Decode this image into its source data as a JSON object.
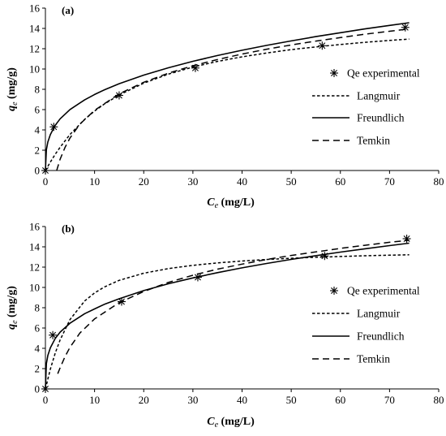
{
  "chart_data": [
    {
      "type": "scatter",
      "panel_label": "(a)",
      "xlabel_main": "C",
      "xlabel_sub": "e",
      "xlabel_unit": " (mg/L)",
      "ylabel_main": "q",
      "ylabel_sub": "e",
      "ylabel_unit": " (mg/g)",
      "xlim": [
        0,
        80
      ],
      "ylim": [
        0,
        16
      ],
      "xticks": [
        0,
        10,
        20,
        30,
        40,
        50,
        60,
        70,
        80
      ],
      "yticks": [
        0,
        2,
        4,
        6,
        8,
        10,
        12,
        14,
        16
      ],
      "grid": false,
      "legend_position": "right",
      "series": [
        {
          "name": "Qe experimental",
          "kind": "markers",
          "x": [
            0,
            1.7,
            15.0,
            30.5,
            56.3,
            73.2
          ],
          "y": [
            0,
            4.3,
            7.4,
            10.1,
            12.3,
            14.1
          ]
        },
        {
          "name": "Langmuir",
          "kind": "dotted",
          "x": [
            0,
            1,
            2,
            3,
            5,
            8,
            10,
            12,
            15,
            20,
            25,
            30,
            35,
            40,
            45,
            50,
            55,
            60,
            65,
            70,
            74
          ],
          "y": [
            0,
            0.83,
            1.6,
            2.3,
            3.55,
            5.05,
            5.86,
            6.56,
            7.44,
            8.61,
            9.5,
            10.19,
            10.75,
            11.2,
            11.58,
            11.91,
            12.18,
            12.42,
            12.63,
            12.82,
            12.95
          ]
        },
        {
          "name": "Freundlich",
          "kind": "solid",
          "x": [
            0,
            0.2,
            0.5,
            1,
            2,
            3,
            5,
            8,
            10,
            12,
            15,
            20,
            25,
            30,
            35,
            40,
            45,
            50,
            55,
            60,
            65,
            70,
            74
          ],
          "y": [
            0,
            2.05,
            2.81,
            3.54,
            4.46,
            5.1,
            6.01,
            6.97,
            7.49,
            7.95,
            8.55,
            9.4,
            10.12,
            10.76,
            11.33,
            11.85,
            12.33,
            12.77,
            13.19,
            13.58,
            13.95,
            14.3,
            14.56
          ]
        },
        {
          "name": "Temkin",
          "kind": "dashed",
          "x": [
            2.3,
            3,
            4,
            5,
            7,
            10,
            15,
            20,
            25,
            30,
            35,
            40,
            45,
            50,
            55,
            60,
            65,
            70,
            74
          ],
          "y": [
            0,
            1.13,
            2.3,
            3.2,
            4.56,
            5.93,
            7.55,
            8.7,
            9.59,
            10.32,
            10.94,
            11.47,
            11.95,
            12.37,
            12.75,
            13.1,
            13.43,
            13.72,
            13.95
          ]
        }
      ]
    },
    {
      "type": "scatter",
      "panel_label": "(b)",
      "xlabel_main": "C",
      "xlabel_sub": "e",
      "xlabel_unit": " (mg/L)",
      "ylabel_main": "q",
      "ylabel_sub": "e",
      "ylabel_unit": " (mg/g)",
      "xlim": [
        0,
        80
      ],
      "ylim": [
        0,
        16
      ],
      "xticks": [
        0,
        10,
        20,
        30,
        40,
        50,
        60,
        70,
        80
      ],
      "yticks": [
        0,
        2,
        4,
        6,
        8,
        10,
        12,
        14,
        16
      ],
      "grid": false,
      "legend_position": "right",
      "series": [
        {
          "name": "Qe experimental",
          "kind": "markers",
          "x": [
            0,
            1.5,
            15.5,
            31.0,
            56.8,
            73.5
          ],
          "y": [
            0,
            5.3,
            8.6,
            11.0,
            13.1,
            14.8
          ]
        },
        {
          "name": "Langmuir",
          "kind": "dotted",
          "x": [
            0,
            1,
            2,
            3,
            5,
            8,
            10,
            12,
            15,
            20,
            25,
            30,
            35,
            40,
            45,
            50,
            55,
            60,
            65,
            70,
            74
          ],
          "y": [
            0,
            1.95,
            3.53,
            4.84,
            6.83,
            8.67,
            9.46,
            10.05,
            10.7,
            11.4,
            11.86,
            12.18,
            12.42,
            12.6,
            12.75,
            12.87,
            12.97,
            13.05,
            13.12,
            13.18,
            13.22
          ]
        },
        {
          "name": "Freundlich",
          "kind": "solid",
          "x": [
            0,
            0.2,
            0.5,
            1,
            2,
            3,
            5,
            8,
            10,
            12,
            15,
            20,
            25,
            30,
            35,
            40,
            45,
            50,
            55,
            60,
            65,
            70,
            74
          ],
          "y": [
            0,
            2.5,
            3.3,
            4.05,
            4.97,
            5.6,
            6.47,
            7.42,
            7.88,
            8.34,
            8.88,
            9.69,
            10.36,
            10.94,
            11.46,
            11.93,
            12.36,
            12.76,
            13.13,
            13.48,
            13.81,
            14.12,
            14.36
          ]
        },
        {
          "name": "Temkin",
          "kind": "dashed",
          "x": [
            2.5,
            3,
            4,
            5,
            7,
            10,
            15,
            20,
            25,
            30,
            35,
            40,
            45,
            50,
            55,
            60,
            65,
            70,
            74
          ],
          "y": [
            1.5,
            2.1,
            3.2,
            4.1,
            5.5,
            6.9,
            8.5,
            9.6,
            10.5,
            11.2,
            11.8,
            12.3,
            12.75,
            13.15,
            13.5,
            13.85,
            14.15,
            14.45,
            14.65
          ]
        }
      ]
    }
  ]
}
